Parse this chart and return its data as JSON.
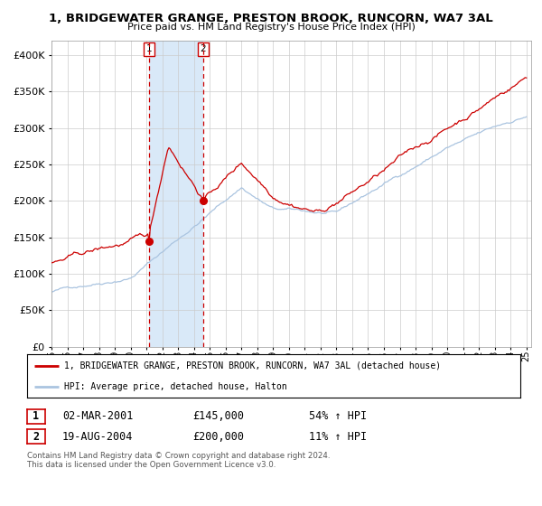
{
  "title": "1, BRIDGEWATER GRANGE, PRESTON BROOK, RUNCORN, WA7 3AL",
  "subtitle": "Price paid vs. HM Land Registry's House Price Index (HPI)",
  "legend_line1": "1, BRIDGEWATER GRANGE, PRESTON BROOK, RUNCORN, WA7 3AL (detached house)",
  "legend_line2": "HPI: Average price, detached house, Halton",
  "sale1_date": "02-MAR-2001",
  "sale1_price": 145000,
  "sale1_hpi": "54% ↑ HPI",
  "sale2_date": "19-AUG-2004",
  "sale2_price": 200000,
  "sale2_hpi": "11% ↑ HPI",
  "footer": "Contains HM Land Registry data © Crown copyright and database right 2024.\nThis data is licensed under the Open Government Licence v3.0.",
  "hpi_color": "#aac4e0",
  "price_color": "#cc0000",
  "vline_color": "#cc0000",
  "shade_color": "#d0e4f7",
  "ylim": [
    0,
    420000
  ],
  "start_year": 1995,
  "end_year": 2025
}
